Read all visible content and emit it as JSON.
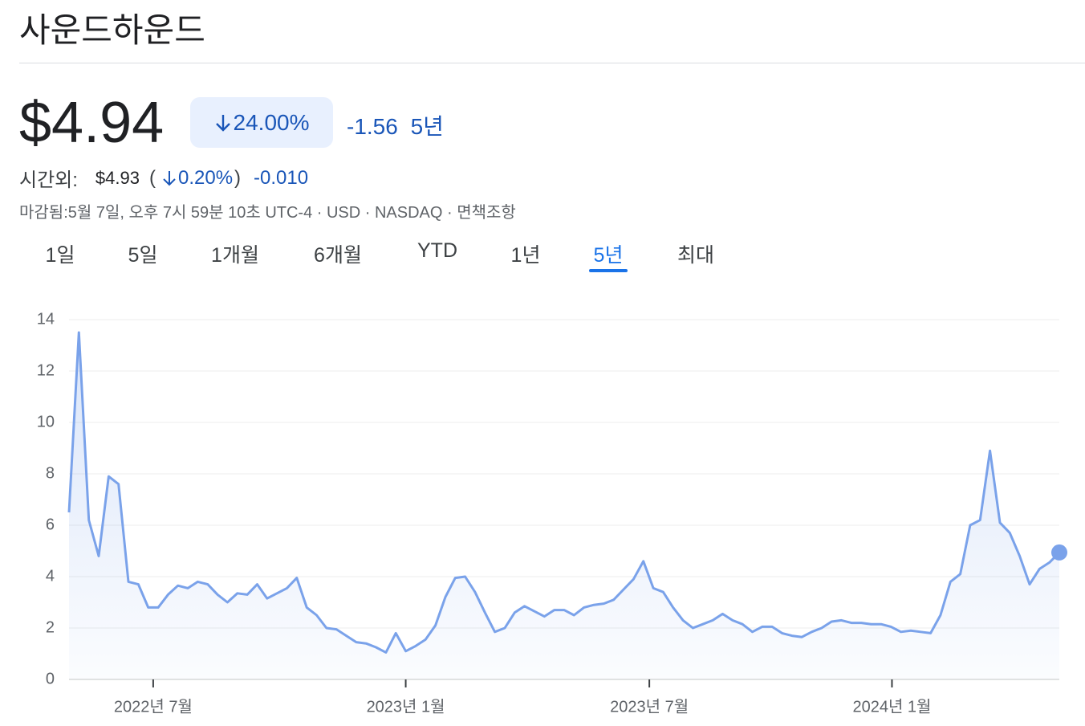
{
  "header": {
    "title": "사운드하운드"
  },
  "quote": {
    "price": "$4.94",
    "change_pct": "24.00%",
    "change": "-1.56",
    "period": "5년"
  },
  "after_hours": {
    "label": "시간외:",
    "price": "$4.93",
    "paren_open": "(",
    "change_pct": "0.20%",
    "paren_close": ")",
    "change": "-0.010"
  },
  "close_info": "마감됨:5월 7일, 오후 7시 59분 10초 UTC-4 · USD · NASDAQ · 면책조항",
  "tabs": {
    "items": [
      "1일",
      "5일",
      "1개월",
      "6개월",
      "YTD",
      "1년",
      "5년",
      "최대"
    ],
    "selected": 6
  },
  "chart_data": {
    "type": "line",
    "series": [
      {
        "color": "#7aa2ea",
        "values": [
          6.5,
          13.5,
          6.2,
          4.8,
          7.9,
          7.6,
          3.8,
          3.7,
          2.8,
          2.8,
          3.3,
          3.65,
          3.55,
          3.8,
          3.7,
          3.3,
          3.0,
          3.35,
          3.3,
          3.7,
          3.15,
          3.35,
          3.55,
          3.95,
          2.8,
          2.5,
          2.0,
          1.95,
          1.7,
          1.45,
          1.4,
          1.25,
          1.05,
          1.8,
          1.1,
          1.3,
          1.55,
          2.1,
          3.2,
          3.95,
          4.0,
          3.4,
          2.6,
          1.85,
          2.0,
          2.6,
          2.85,
          2.65,
          2.45,
          2.7,
          2.7,
          2.5,
          2.8,
          2.9,
          2.95,
          3.1,
          3.5,
          3.9,
          4.6,
          3.55,
          3.4,
          2.8,
          2.3,
          2.0,
          2.15,
          2.3,
          2.55,
          2.3,
          2.15,
          1.85,
          2.05,
          2.05,
          1.8,
          1.7,
          1.65,
          1.85,
          2.0,
          2.25,
          2.3,
          2.2,
          2.2,
          2.15,
          2.15,
          2.05,
          1.85,
          1.9,
          1.85,
          1.8,
          2.5,
          3.8,
          4.1,
          6.0,
          6.2,
          8.9,
          6.1,
          5.7,
          4.8,
          3.7,
          4.3,
          4.55,
          4.94
        ]
      }
    ],
    "xlim": [
      0,
      100
    ],
    "xticks": [
      {
        "value": 8.5,
        "label": "2022년 7월"
      },
      {
        "value": 34,
        "label": "2023년 1월"
      },
      {
        "value": 58.6,
        "label": "2023년 7월"
      },
      {
        "value": 83.1,
        "label": "2024년 1월"
      }
    ],
    "ylim": [
      0,
      14
    ],
    "yticks": [
      0,
      2,
      4,
      6,
      8,
      10,
      12,
      14
    ],
    "grid": true
  }
}
